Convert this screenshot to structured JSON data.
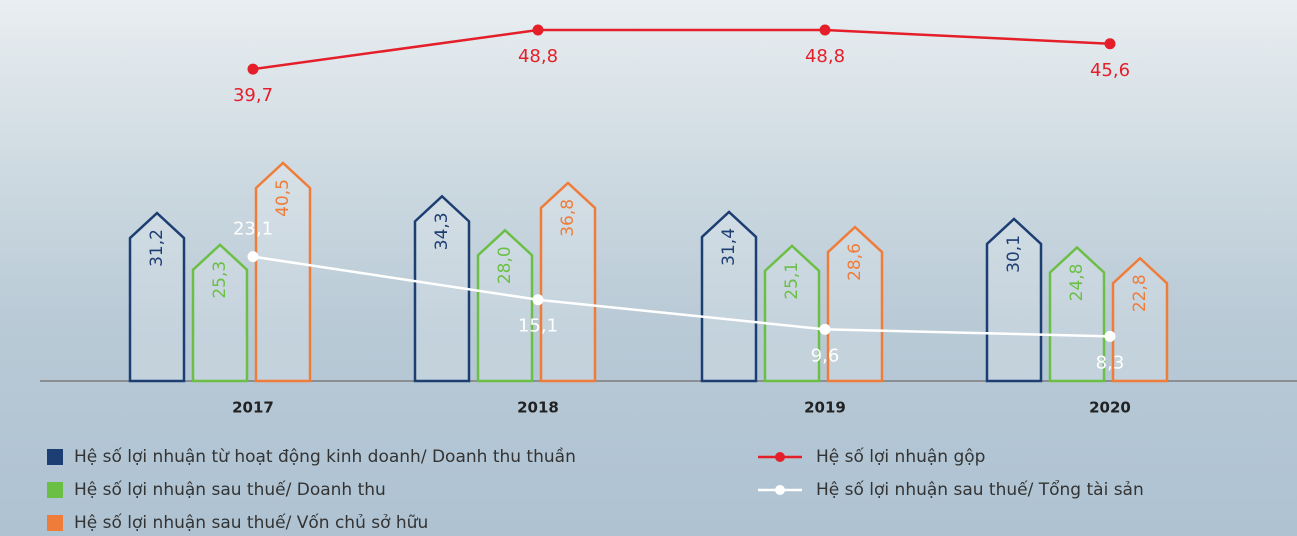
{
  "chart_data": {
    "type": "combo",
    "categories": [
      "2017",
      "2018",
      "2019",
      "2020"
    ],
    "series": [
      {
        "name": "Hệ số lợi nhuận từ hoạt động kinh doanh/ Doanh thu thuần",
        "type": "bar",
        "color": "#1d3e72",
        "values": [
          31.2,
          34.3,
          31.4,
          30.1
        ],
        "value_labels": [
          "31,2",
          "34,3",
          "31,4",
          "30,1"
        ]
      },
      {
        "name": "Hệ số lợi nhuận sau thuế/ Doanh thu",
        "type": "bar",
        "color": "#6cbf45",
        "values": [
          25.3,
          28.0,
          25.1,
          24.8
        ],
        "value_labels": [
          "25,3",
          "28,0",
          "25,1",
          "24,8"
        ]
      },
      {
        "name": "Hệ số lợi nhuận sau thuế/ Vốn chủ sở hữu",
        "type": "bar",
        "color": "#f07c3a",
        "values": [
          40.5,
          36.8,
          28.6,
          22.8
        ],
        "value_labels": [
          "40,5",
          "36,8",
          "28,6",
          "22,8"
        ]
      },
      {
        "name": "Hệ số lợi nhuận gộp",
        "type": "line",
        "axis": "y2",
        "color": "#e51f2a",
        "values": [
          39.7,
          48.8,
          48.8,
          45.6
        ],
        "value_labels": [
          "39,7",
          "48,8",
          "48,8",
          "45,6"
        ]
      },
      {
        "name": "Hệ số lợi nhuận sau thuế/ Tổng tài sản",
        "type": "line",
        "color": "#ffffff",
        "values": [
          23.1,
          15.1,
          9.6,
          8.3
        ],
        "value_labels": [
          "23,1",
          "15,1",
          "9,6",
          "8,3"
        ]
      }
    ]
  }
}
